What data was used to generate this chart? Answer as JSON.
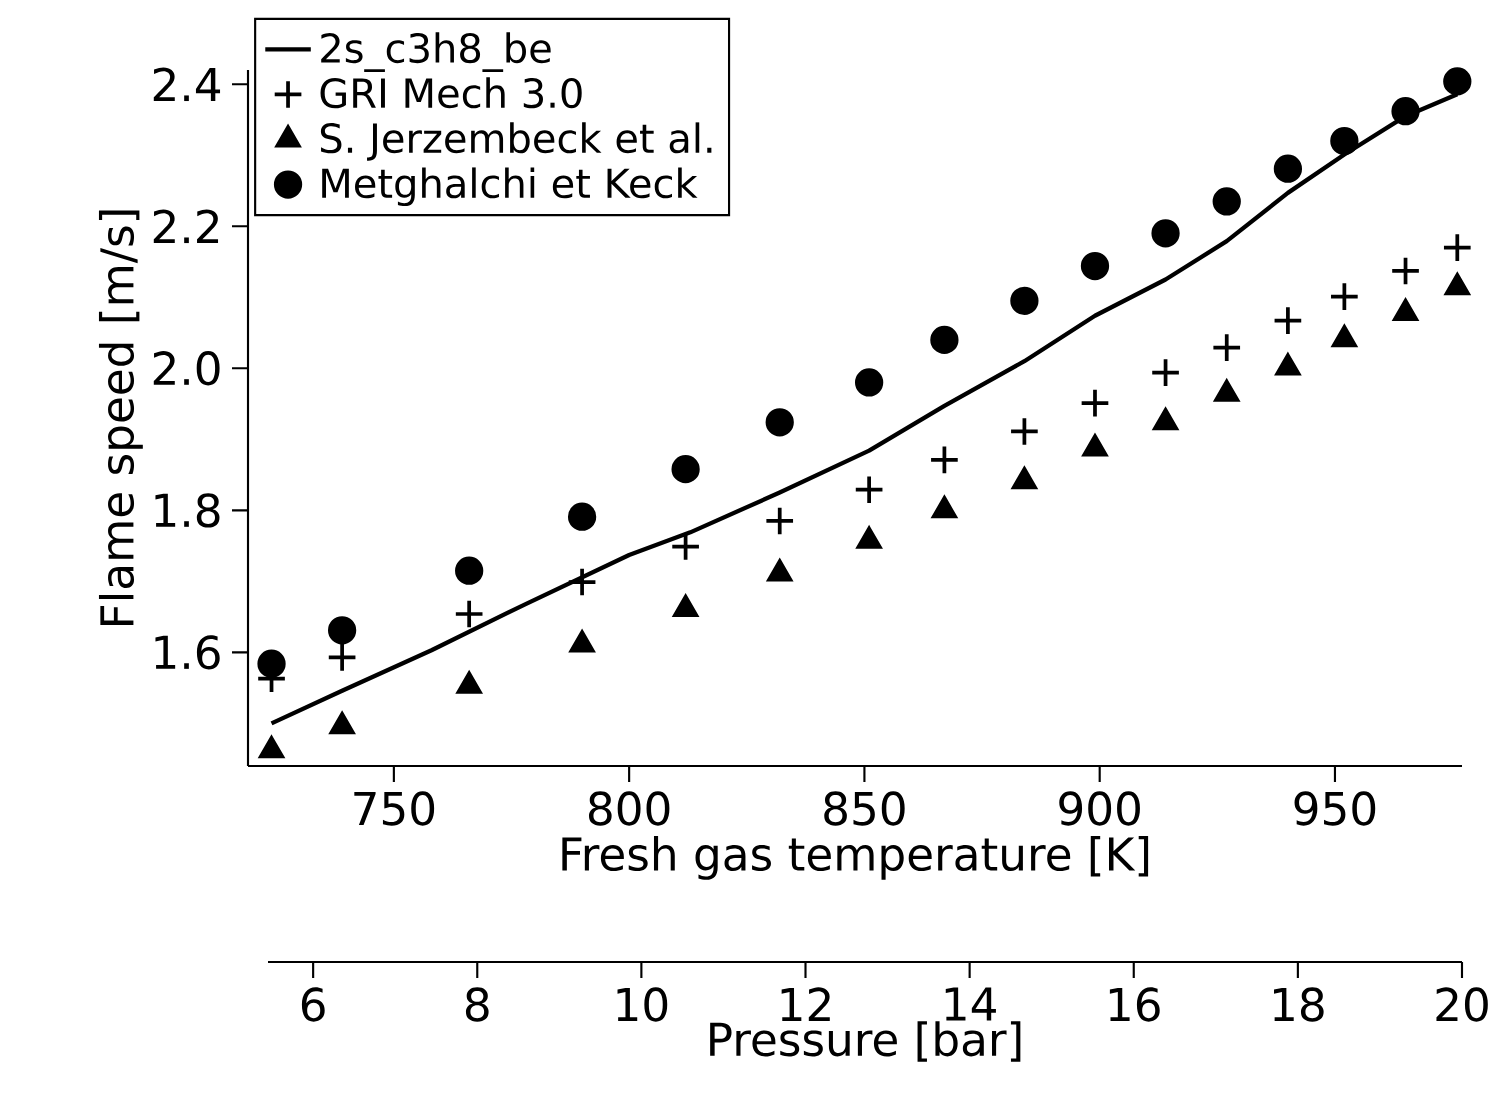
{
  "chart_data": {
    "type": "scatter",
    "xlabel": "Fresh gas temperature [K]",
    "ylabel": "Flame speed [m/s]",
    "xlim": [
      719,
      977
    ],
    "xticks": [
      750,
      800,
      850,
      900,
      950
    ],
    "ylim": [
      1.44,
      2.42
    ],
    "yticks": [
      {
        "value": 1.6,
        "label": "1.6"
      },
      {
        "value": 1.8,
        "label": "1.8"
      },
      {
        "value": 2.0,
        "label": "2.0"
      },
      {
        "value": 2.2,
        "label": "2.2"
      },
      {
        "value": 2.4,
        "label": "2.4"
      }
    ],
    "x2lim": [
      5.45,
      20
    ],
    "x2ticks": [
      6,
      8,
      10,
      12,
      14,
      16,
      18,
      20
    ],
    "x2label": "Pressure [bar]",
    "legend": "top left",
    "series": [
      {
        "name": "2s_c3h8_be",
        "type": "line",
        "marker": "none",
        "line_style": "solid",
        "color": "#000000",
        "x": [
          724,
          739,
          758,
          778,
          800,
          813,
          832,
          851,
          867,
          884,
          899,
          914,
          927,
          940,
          952,
          965,
          976
        ],
        "values": [
          1.5,
          1.546,
          1.603,
          1.668,
          1.737,
          1.769,
          1.825,
          1.884,
          1.947,
          2.01,
          2.074,
          2.125,
          2.179,
          2.247,
          2.301,
          2.355,
          2.386
        ]
      },
      {
        "name": "GRI Mech 3.0",
        "marker": "cross",
        "color": "#000000",
        "x": [
          724,
          739,
          766,
          790,
          812,
          832,
          851,
          867,
          884,
          899,
          914,
          927,
          940,
          952,
          965,
          976
        ],
        "values": [
          1.563,
          1.593,
          1.654,
          1.699,
          1.749,
          1.785,
          1.829,
          1.871,
          1.911,
          1.951,
          1.994,
          2.029,
          2.067,
          2.101,
          2.137,
          2.17
        ]
      },
      {
        "name": "S. Jerzembeck et al.",
        "marker": "triangle",
        "color": "#000000",
        "x": [
          724,
          739,
          766,
          790,
          812,
          832,
          851,
          867,
          884,
          899,
          914,
          927,
          940,
          952,
          965,
          976
        ],
        "values": [
          1.462,
          1.496,
          1.553,
          1.611,
          1.661,
          1.711,
          1.757,
          1.8,
          1.841,
          1.887,
          1.924,
          1.964,
          2.001,
          2.041,
          2.078,
          2.114
        ]
      },
      {
        "name": "Metghalchi et Keck",
        "marker": "circle",
        "color": "#000000",
        "x": [
          724,
          739,
          766,
          790,
          812,
          832,
          851,
          867,
          884,
          899,
          914,
          927,
          940,
          952,
          965,
          976
        ],
        "values": [
          1.584,
          1.631,
          1.715,
          1.791,
          1.858,
          1.924,
          1.98,
          2.04,
          2.095,
          2.144,
          2.19,
          2.235,
          2.281,
          2.32,
          2.362,
          2.404
        ]
      }
    ]
  }
}
